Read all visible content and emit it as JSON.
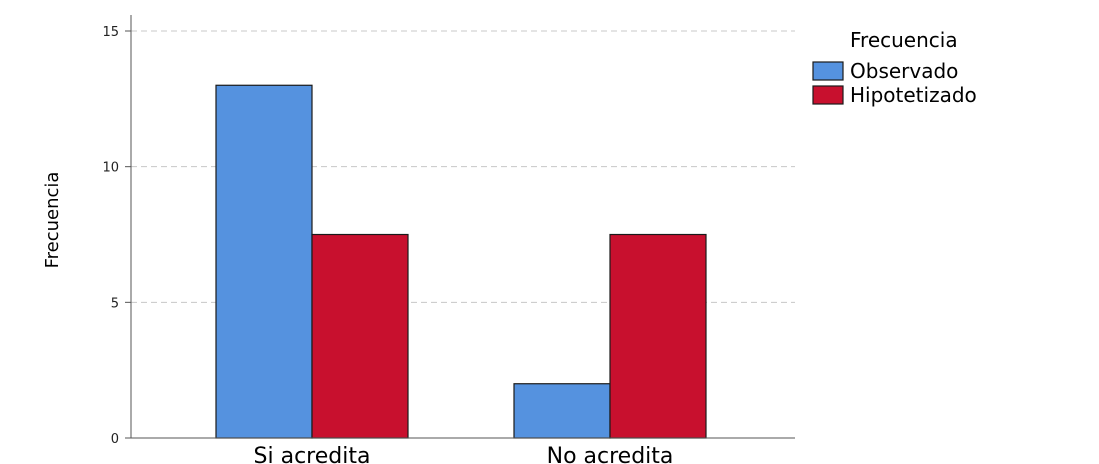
{
  "chart_data": {
    "type": "bar",
    "categories": [
      "Si acredita",
      "No acredita"
    ],
    "series": [
      {
        "name": "Observado",
        "values": [
          13,
          2
        ],
        "color": "#5592DF"
      },
      {
        "name": "Hipotetizado",
        "values": [
          7.5,
          7.5
        ],
        "color": "#C8102E"
      }
    ],
    "ylabel": "Frecuencia",
    "ylim": [
      0,
      15
    ],
    "yticks": [
      "0",
      "5",
      "10",
      "15"
    ],
    "grid": true,
    "legend": {
      "title": "Frecuencia",
      "position": "top-right"
    }
  }
}
